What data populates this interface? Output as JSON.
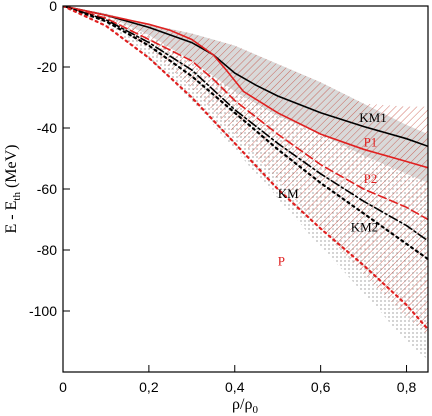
{
  "chart_data": {
    "type": "line",
    "xlabel": "ρ/ρ₀",
    "ylabel": "E - E_th (MeV)",
    "xlim": [
      0,
      0.85
    ],
    "ylim": [
      -120,
      0
    ],
    "x_ticks": [
      {
        "value": 0,
        "label": "0"
      },
      {
        "value": 0.2,
        "label": "0,2"
      },
      {
        "value": 0.4,
        "label": "0,4"
      },
      {
        "value": 0.6,
        "label": "0,6"
      },
      {
        "value": 0.8,
        "label": "0,8"
      }
    ],
    "y_ticks": [
      {
        "value": 0,
        "label": "0"
      },
      {
        "value": -20,
        "label": "-20"
      },
      {
        "value": -40,
        "label": "-40"
      },
      {
        "value": -60,
        "label": "-60"
      },
      {
        "value": -80,
        "label": "-80"
      },
      {
        "value": -100,
        "label": "-100"
      }
    ],
    "bands": [
      {
        "style": "gray-fill",
        "color": "#d9d9d9",
        "upper": [
          [
            0,
            0
          ],
          [
            0.1,
            -2.5
          ],
          [
            0.2,
            -6
          ],
          [
            0.3,
            -9
          ],
          [
            0.4,
            -13
          ],
          [
            0.5,
            -19
          ],
          [
            0.6,
            -25
          ],
          [
            0.7,
            -32
          ],
          [
            0.8,
            -39
          ],
          [
            0.85,
            -42
          ]
        ],
        "lower": [
          [
            0,
            0
          ],
          [
            0.1,
            -3
          ],
          [
            0.2,
            -9.5
          ],
          [
            0.3,
            -18
          ],
          [
            0.4,
            -28
          ],
          [
            0.5,
            -36
          ],
          [
            0.6,
            -42
          ],
          [
            0.7,
            -49
          ],
          [
            0.8,
            -55
          ],
          [
            0.85,
            -58
          ]
        ]
      },
      {
        "style": "red-hatch",
        "color": "#c0392b",
        "upper": [
          [
            0,
            0
          ],
          [
            0.1,
            -2.5
          ],
          [
            0.2,
            -6
          ],
          [
            0.3,
            -9
          ],
          [
            0.4,
            -13
          ],
          [
            0.5,
            -19
          ],
          [
            0.6,
            -25
          ],
          [
            0.7,
            -32
          ],
          [
            0.8,
            -33
          ],
          [
            0.85,
            -33
          ]
        ],
        "lower": [
          [
            0,
            0
          ],
          [
            0.1,
            -5
          ],
          [
            0.2,
            -14
          ],
          [
            0.3,
            -27
          ],
          [
            0.4,
            -42
          ],
          [
            0.5,
            -57
          ],
          [
            0.6,
            -73
          ],
          [
            0.7,
            -88
          ],
          [
            0.8,
            -102
          ],
          [
            0.85,
            -108
          ]
        ]
      },
      {
        "style": "gray-dots",
        "color": "#666666",
        "upper": [
          [
            0,
            0
          ],
          [
            0.1,
            -3
          ],
          [
            0.2,
            -9.5
          ],
          [
            0.3,
            -18
          ],
          [
            0.4,
            -28
          ],
          [
            0.5,
            -36
          ],
          [
            0.6,
            -42
          ],
          [
            0.7,
            -49
          ],
          [
            0.8,
            -55
          ],
          [
            0.85,
            -58
          ]
        ],
        "lower": [
          [
            0,
            0
          ],
          [
            0.1,
            -6
          ],
          [
            0.2,
            -17
          ],
          [
            0.3,
            -31
          ],
          [
            0.4,
            -47
          ],
          [
            0.5,
            -63
          ],
          [
            0.6,
            -79
          ],
          [
            0.7,
            -94
          ],
          [
            0.8,
            -110
          ],
          [
            0.85,
            -116
          ]
        ]
      }
    ],
    "series": [
      {
        "name": "KM1",
        "color": "#000000",
        "dash": "solid",
        "x": [
          0,
          0.1,
          0.2,
          0.3,
          0.35,
          0.4,
          0.45,
          0.5,
          0.6,
          0.7,
          0.8,
          0.85
        ],
        "y": [
          0,
          -3,
          -7,
          -12,
          -16,
          -22,
          -26,
          -29.5,
          -35,
          -39.5,
          -43.5,
          -46
        ]
      },
      {
        "name": "P1",
        "color": "#e02020",
        "dash": "solid",
        "x": [
          0,
          0.1,
          0.2,
          0.25,
          0.3,
          0.35,
          0.38,
          0.42,
          0.5,
          0.6,
          0.7,
          0.8,
          0.85
        ],
        "y": [
          0,
          -3,
          -6,
          -8,
          -11,
          -16,
          -21,
          -28,
          -35,
          -42,
          -47,
          -51,
          -53
        ]
      },
      {
        "name": "P2",
        "color": "#e02020",
        "dash": "dash",
        "x": [
          0,
          0.1,
          0.2,
          0.3,
          0.35,
          0.4,
          0.5,
          0.6,
          0.7,
          0.8,
          0.85
        ],
        "y": [
          0,
          -4,
          -11,
          -18,
          -24,
          -31,
          -42,
          -52,
          -60,
          -66,
          -70
        ]
      },
      {
        "name": "KM2",
        "color": "#000000",
        "dash": "dashdot",
        "x": [
          0,
          0.1,
          0.2,
          0.3,
          0.4,
          0.5,
          0.6,
          0.7,
          0.8,
          0.85
        ],
        "y": [
          0,
          -4.5,
          -12,
          -21,
          -34,
          -45,
          -55,
          -64,
          -72,
          -77
        ]
      },
      {
        "name": "KM",
        "color": "#000000",
        "dash": "dot",
        "x": [
          0,
          0.1,
          0.2,
          0.3,
          0.4,
          0.5,
          0.6,
          0.7,
          0.8,
          0.85
        ],
        "y": [
          0,
          -5,
          -13,
          -23,
          -35,
          -47,
          -58,
          -68,
          -78,
          -83
        ]
      },
      {
        "name": "P",
        "color": "#e02020",
        "dash": "dot",
        "x": [
          0,
          0.1,
          0.2,
          0.3,
          0.4,
          0.5,
          0.6,
          0.7,
          0.8,
          0.85
        ],
        "y": [
          0,
          -6.5,
          -17,
          -30,
          -45,
          -60,
          -73,
          -85,
          -98,
          -106
        ]
      }
    ],
    "annotations": [
      {
        "text": "KM1",
        "x": 0.69,
        "y": -38,
        "color": "#000000"
      },
      {
        "text": "P1",
        "x": 0.7,
        "y": -46,
        "color": "#e02020"
      },
      {
        "text": "P2",
        "x": 0.7,
        "y": -58,
        "color": "#e02020"
      },
      {
        "text": "KM",
        "x": 0.5,
        "y": -63,
        "color": "#000000"
      },
      {
        "text": "KM2",
        "x": 0.67,
        "y": -74,
        "color": "#000000"
      },
      {
        "text": "P",
        "x": 0.5,
        "y": -85,
        "color": "#e02020"
      }
    ]
  }
}
